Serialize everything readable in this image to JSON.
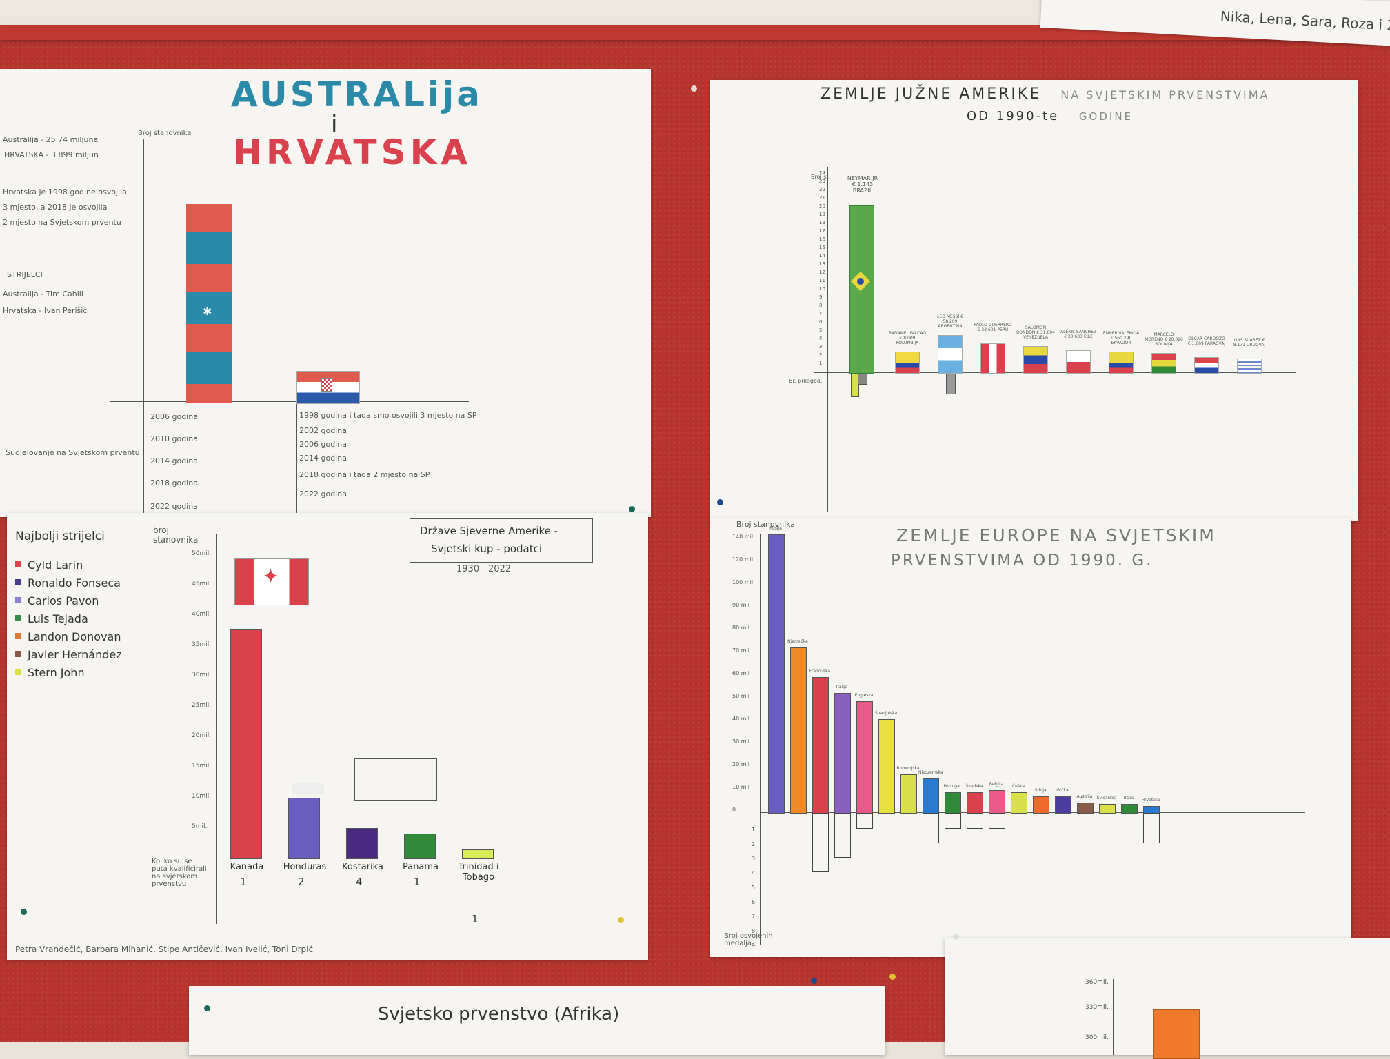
{
  "corner_note": "Nika, Lena, Sara, Roza i 2",
  "poster_aus": {
    "title_line1": "AUSTRALija",
    "title_i": "i",
    "title_line2": "HRVATSKA",
    "y_axis_label": "Broj stanovnika",
    "notes": [
      "Australija - 25.74 miljuna",
      "HRVATSKA - 3.899 miljun",
      "Hrvatska je 1998 godine osvojila",
      "3 mjesto, a 2018 je osvojila",
      "2 mjesto na Svjetskom prventu"
    ],
    "strijelci_label": "STRIJELCI",
    "scorers": [
      "Australija - Tim Cahill",
      "Hrvatska - Ivan Perišić"
    ],
    "participation_label": "Sudjelovanje na Svjetskom prventu",
    "aus_years": [
      "2006 godina",
      "2010 godina",
      "2014 godina",
      "2018 godina",
      "2022 godina"
    ],
    "cro_years": [
      "1998 godina i tada smo osvojili 3 mjesto na SP",
      "2002 godina",
      "2006 godina",
      "2014 godina",
      "2018 godina i tada 2 mjesto na SP",
      "2022 godina"
    ]
  },
  "poster_sa": {
    "title": "ZEMLJE JUŽNE AMERIKE",
    "title_cont": "NA SVJETSKIM PRVENSTVIMA",
    "title_line2": "OD 1990-te",
    "title_line2_cont": "GODINE",
    "y_label": "Broj st.",
    "neg_label": "Br. prilagođ.",
    "top_label": "NEYMAR JR € 1.143 BRAZIL",
    "bar_labels": [
      "RADAMEL FALCAO € 8.009 KOLUMBIJA",
      "LEO MESSI € 58.209 ARGENTINA",
      "PAOLO GUERRERO € 33.601 PERU",
      "SALOMÓN RONDÓN € 31.604 VENEZUELA",
      "ALEXIS SÁNCHEZ € 30.633 ČILE",
      "ENNER VALENCIA € 560.290 EKVADOR",
      "MARCELO MORENO € 20.026 BOLIVIJA",
      "ÓSCAR CARDOZO € 1.069 PARAGVAJ",
      "LUIS SUÁREZ € 8.171 URUGVAJ"
    ]
  },
  "poster_na": {
    "legend_title": "Najbolji strijelci",
    "legend": [
      {
        "name": "Cyld Larin",
        "color": "#d9424d"
      },
      {
        "name": "Ronaldo Fonseca",
        "color": "#4a3d8f"
      },
      {
        "name": "Carlos Pavon",
        "color": "#8a7fd0"
      },
      {
        "name": "Luis Tejada",
        "color": "#3a8a4a"
      },
      {
        "name": "Landon Donovan",
        "color": "#e07a3a"
      },
      {
        "name": "Javier Hernández",
        "color": "#8a5a4a"
      },
      {
        "name": "Stern John",
        "color": "#d9e04a"
      }
    ],
    "y_label": "broj stanovnika",
    "box_title_line1": "Države Sjeverne Amerike -",
    "box_title_line2": "Svjetski kup - podatci",
    "years": "1930 - 2022",
    "ticks": [
      "50mil.",
      "45mil.",
      "40mil.",
      "35mil.",
      "30mil.",
      "25mil.",
      "20mil.",
      "15mil.",
      "10mil.",
      "5mil."
    ],
    "countries": [
      {
        "name": "Kanada",
        "count": "1",
        "color": "#d9424d"
      },
      {
        "name": "Honduras",
        "count": "2",
        "color": "#6a5fc0"
      },
      {
        "name": "Kostarika",
        "count": "4",
        "color": "#4a2a80"
      },
      {
        "name": "Panama",
        "count": "1",
        "color": "#2f8a3a"
      },
      {
        "name": "Trinidad i Tobago",
        "count": "1",
        "color": "#d9ea5a"
      }
    ],
    "x_note": "Koliko su se puta kvalificirali na svjetskom prvenstvu",
    "authors": "Petra Vrandečić, Barbara Mihanić, Stipe Antičević, Ivan Ivelić, Toni Drpić"
  },
  "poster_eu": {
    "y_label": "Broj stanovnika",
    "title_line1": "ZEMLJE EUROPE NA SVJETSKIM",
    "title_line2": "PRVENSTVIMA OD 1990. G.",
    "neg_label": "Broj osvojenih medalja",
    "ticks": [
      "140 mil",
      "120 mil",
      "100 mil",
      "90 mil",
      "80 mil",
      "70 mil",
      "60 mil",
      "50 mil",
      "40 mil",
      "30 mil",
      "20 mil",
      "10 mil",
      "0"
    ],
    "bars": [
      {
        "label": "Rusija",
        "color": "#6a5fc0",
        "height": 140,
        "neg": 0
      },
      {
        "label": "Njemačka",
        "color": "#ef8a2a",
        "height": 83,
        "neg": 0
      },
      {
        "label": "Francuska",
        "color": "#d9424d",
        "height": 68,
        "neg": 4
      },
      {
        "label": "Italija",
        "color": "#8a5fc0",
        "height": 60,
        "neg": 3
      },
      {
        "label": "Engleska",
        "color": "#e85a8a",
        "height": 56,
        "neg": 1
      },
      {
        "label": "Španjolska",
        "color": "#e8e040",
        "height": 47,
        "neg": 0
      },
      {
        "label": "Rumunjska",
        "color": "#d9e04a",
        "height": 19,
        "neg": 0
      },
      {
        "label": "Nizozemska",
        "color": "#2a7ad0",
        "height": 17,
        "neg": 2
      },
      {
        "label": "Portugal",
        "color": "#2f8a3a",
        "height": 10,
        "neg": 1
      },
      {
        "label": "Švedska",
        "color": "#d9424d",
        "height": 10,
        "neg": 1
      },
      {
        "label": "Belgija",
        "color": "#e85a8a",
        "height": 11,
        "neg": 1
      },
      {
        "label": "Češka",
        "color": "#d9e04a",
        "height": 10,
        "neg": 0
      },
      {
        "label": "Srbija",
        "color": "#ef6a2a",
        "height": 8,
        "neg": 0
      },
      {
        "label": "Grčka",
        "color": "#4a3d9f",
        "height": 8,
        "neg": 0
      },
      {
        "label": "Austrija",
        "color": "#8a5a4a",
        "height": 5,
        "neg": 0
      },
      {
        "label": "Švicarska",
        "color": "#d9e04a",
        "height": 4,
        "neg": 0
      },
      {
        "label": "Irska",
        "color": "#2f8a3a",
        "height": 4,
        "neg": 0
      },
      {
        "label": "Hrvatska",
        "color": "#2a7ad0",
        "height": 3,
        "neg": 2
      }
    ]
  },
  "poster_africa": {
    "title": "Svjetsko prvenstvo (Afrika)"
  },
  "poster_br": {
    "ticks": [
      "360mil.",
      "330mil.",
      "300mil."
    ]
  }
}
